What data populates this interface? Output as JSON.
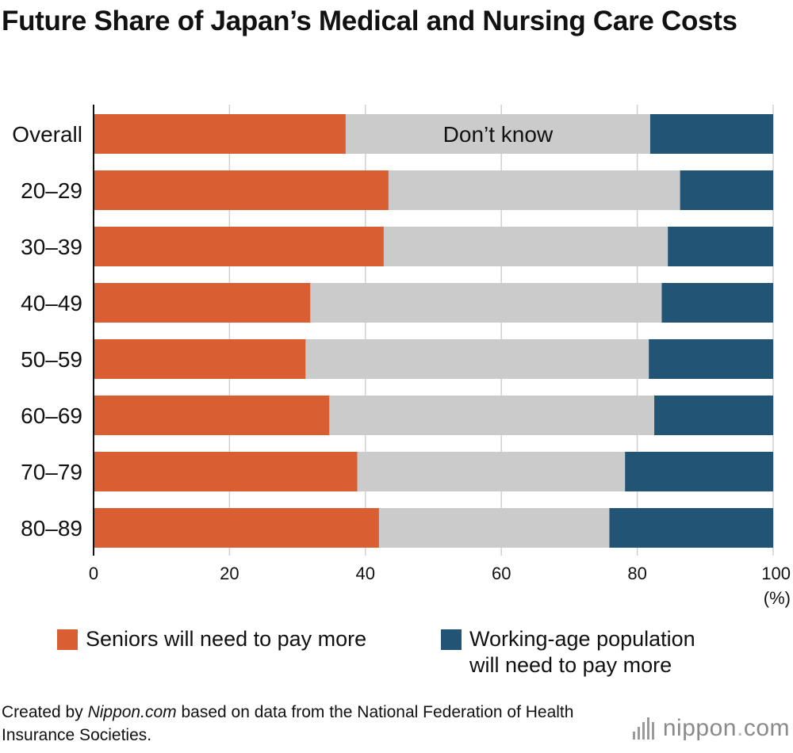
{
  "chart_data": {
    "type": "bar",
    "orientation": "horizontal",
    "stacked": true,
    "title": "Future Share of Japan’s Medical and Nursing Care Costs",
    "categories": [
      "Overall",
      "20–29",
      "30–39",
      "40–49",
      "50–59",
      "60–69",
      "70–79",
      "80–89"
    ],
    "series": [
      {
        "name": "Seniors will need to pay more",
        "color": "#d95f33",
        "values": [
          37.1,
          43.4,
          42.7,
          31.9,
          31.2,
          34.7,
          38.8,
          42.0
        ]
      },
      {
        "name": "Don’t know",
        "color": "#cbcbcb",
        "values": [
          44.8,
          42.9,
          41.8,
          51.7,
          50.5,
          47.8,
          39.4,
          33.9
        ]
      },
      {
        "name": "Working-age population will need to pay more",
        "color": "#225575",
        "values": [
          18.1,
          13.7,
          15.5,
          16.4,
          18.3,
          17.5,
          21.8,
          24.1
        ]
      }
    ],
    "inline_label": "Don’t know",
    "xlim": [
      0,
      100
    ],
    "xticks": [
      0,
      20,
      40,
      60,
      80,
      100
    ],
    "xunit": "(%)",
    "grid": true,
    "legend": "bottom",
    "legend_labels": [
      "Seniors will need to pay more",
      "Working-age population\nwill need to pay more"
    ]
  },
  "source": {
    "prefix": "Created by ",
    "emphasis": "Nippon.com",
    "suffix": " based on data from the National Federation of Health Insurance Societies."
  },
  "logo": {
    "name": "nippon",
    "dot": ".",
    "domain": "com"
  }
}
